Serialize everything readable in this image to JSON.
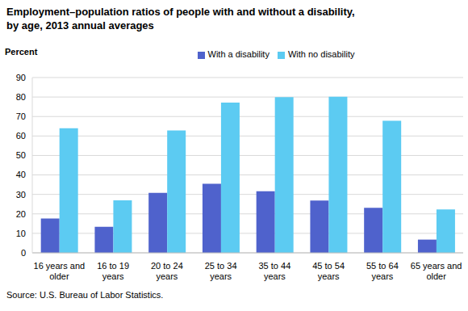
{
  "chart_data": {
    "type": "bar",
    "title": "Employment–population ratios of people with and without a disability, by age, 2013 annual averages",
    "y_label": "Percent",
    "source": "Source: U.S. Bureau of Labor Statistics.",
    "categories": [
      "16 years and older",
      "16 to 19 years",
      "20 to 24 years",
      "25 to 34 years",
      "35 to 44 years",
      "45 to 54 years",
      "55 to 64 years",
      "65 years and older"
    ],
    "series": [
      {
        "name": "With a disability",
        "color": "#4f62cc",
        "values": [
          17.6,
          13.4,
          30.8,
          35.5,
          31.6,
          26.9,
          23.1,
          6.8
        ]
      },
      {
        "name": "With no disability",
        "color": "#5ccbf2",
        "values": [
          64.0,
          27.0,
          62.8,
          77.1,
          79.9,
          80.1,
          67.8,
          22.3
        ]
      }
    ],
    "ylim": [
      0,
      90
    ],
    "yticks": [
      0,
      10,
      20,
      30,
      40,
      50,
      60,
      70,
      80,
      90
    ],
    "grid": true,
    "legend": "top"
  }
}
